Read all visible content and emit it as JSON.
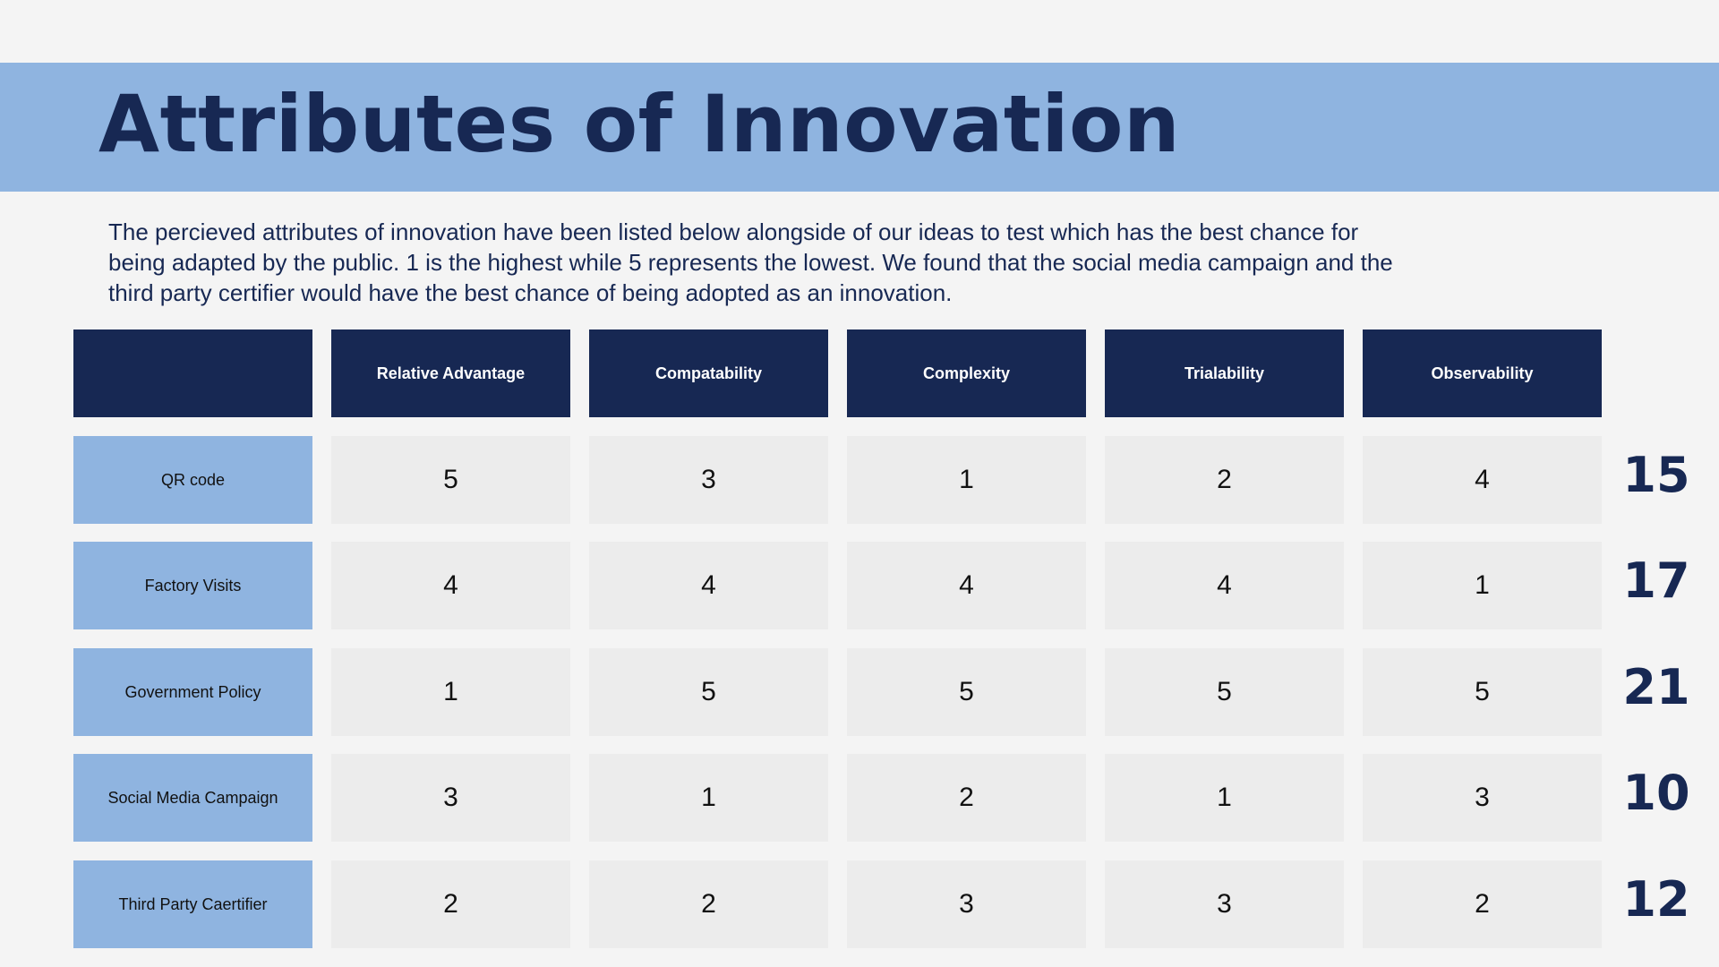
{
  "title": "Attributes of Innovation",
  "intro": "The percieved attributes of innovation have been listed below alongside of our ideas to test which has the best chance for being adapted by the public. 1 is the highest while 5 represents the lowest. We found that the social media campaign and the third party certifier would have the best chance of being adopted as an innovation.",
  "table": {
    "corner": "",
    "columns": [
      "Relative Advantage",
      "Compatability",
      "Complexity",
      "Trialability",
      "Observability"
    ],
    "rows": [
      {
        "label": "QR code",
        "values": [
          "5",
          "3",
          "1",
          "2",
          "4"
        ],
        "total": "15"
      },
      {
        "label": "Factory Visits",
        "values": [
          "4",
          "4",
          "4",
          "4",
          "1"
        ],
        "total": "17"
      },
      {
        "label": "Government Policy",
        "values": [
          "1",
          "5",
          "5",
          "5",
          "5"
        ],
        "total": "21"
      },
      {
        "label": "Social Media Campaign",
        "values": [
          "3",
          "1",
          "2",
          "1",
          "3"
        ],
        "total": "10"
      },
      {
        "label": "Third Party Caertifier",
        "values": [
          "2",
          "2",
          "3",
          "3",
          "2"
        ],
        "total": "12"
      }
    ]
  },
  "colors": {
    "navy": "#172853",
    "light_blue": "#8fb4e0",
    "cell_gray": "#ececec",
    "background": "#f4f4f4"
  }
}
